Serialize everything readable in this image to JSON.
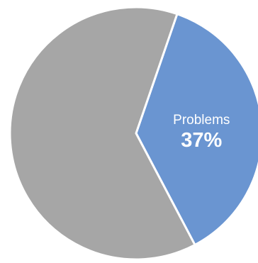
{
  "chart_data": {
    "type": "pie",
    "slices": [
      {
        "label": "Problems",
        "value": 37,
        "value_label": "37%",
        "color": "#6a95d1",
        "show_label": true
      },
      {
        "label": "",
        "value": 63,
        "value_label": "",
        "color": "#a6a6a6",
        "show_label": false
      }
    ],
    "border_color": "#ffffff",
    "start_angle_deg": 19,
    "direction": "clockwise"
  }
}
